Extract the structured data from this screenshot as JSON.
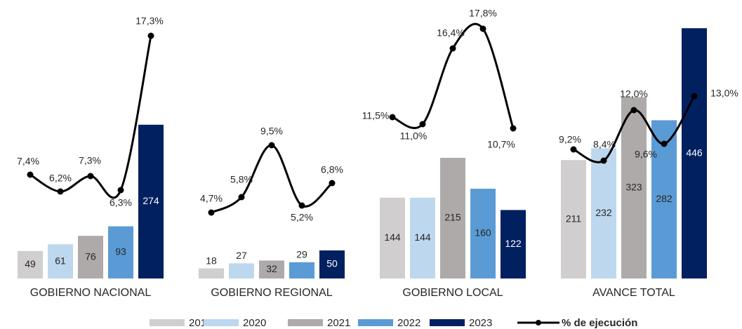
{
  "chart_data": {
    "type": "bar",
    "categories": [
      "GOBIERNO NACIONAL",
      "GOBIERNO REGIONAL",
      "GOBIERNO LOCAL",
      "AVANCE TOTAL"
    ],
    "series": [
      {
        "name": "2019",
        "color": "#d0cece",
        "values": [
          49,
          18,
          144,
          211
        ]
      },
      {
        "name": "2020",
        "color": "#bdd7ee",
        "values": [
          61,
          27,
          144,
          232
        ]
      },
      {
        "name": "2021",
        "color": "#aeaaaa",
        "values": [
          76,
          32,
          215,
          323
        ]
      },
      {
        "name": "2022",
        "color": "#5b9bd5",
        "values": [
          93,
          29,
          160,
          282
        ]
      },
      {
        "name": "2023",
        "color": "#002060",
        "values": [
          274,
          50,
          122,
          446
        ]
      }
    ],
    "line": {
      "type": "line",
      "name": "% de ejecución",
      "color": "#000000",
      "axis": "y2",
      "values": [
        [
          7.4,
          6.2,
          7.3,
          6.3,
          17.3
        ],
        [
          4.7,
          5.8,
          9.5,
          5.2,
          6.8
        ],
        [
          11.5,
          11.0,
          16.4,
          17.8,
          10.7
        ],
        [
          9.2,
          8.4,
          12.0,
          9.6,
          13.0
        ]
      ],
      "value_labels": [
        [
          "7,4%",
          "6,2%",
          "7,3%",
          "6,3%",
          "17,3%"
        ],
        [
          "4,7%",
          "5,8%",
          "9,5%",
          "5,2%",
          "6,8%"
        ],
        [
          "11,5%",
          "11,0%",
          "16,4%",
          "17,8%",
          "10,7%"
        ],
        [
          "9,2%",
          "8,4%",
          "12,0%",
          "9,6%",
          "13,0%"
        ]
      ]
    },
    "ylim": [
      0,
      500
    ],
    "y2lim": [
      0,
      20
    ]
  }
}
